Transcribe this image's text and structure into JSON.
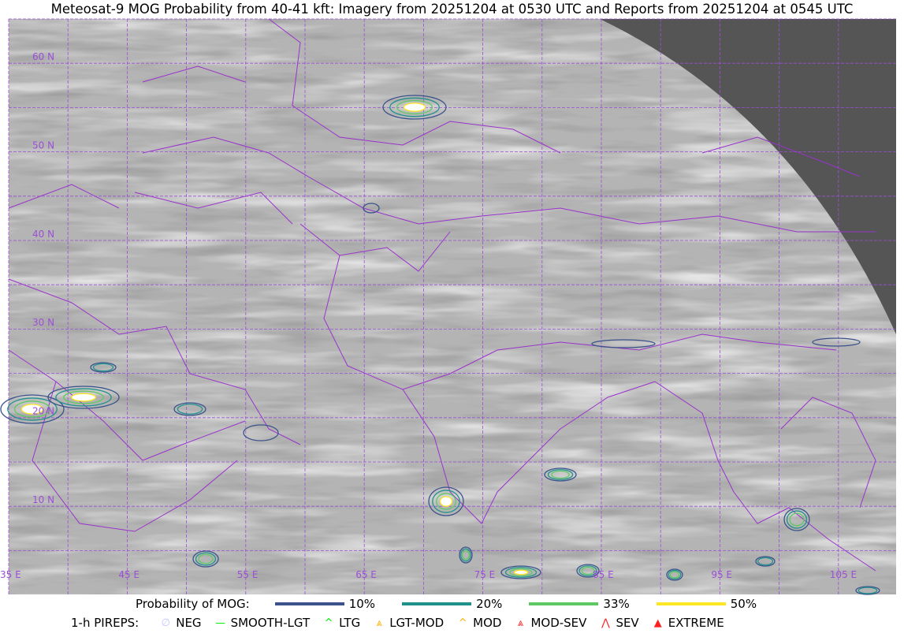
{
  "title": "Meteosat-9 MOG Probability from 40-41 kft: Imagery from 20251204 at 0530 UTC and Reports from 20251204 at 0545 UTC",
  "map": {
    "longitude_labels": [
      "35 E",
      "45 E",
      "55 E",
      "65 E",
      "75 E",
      "85 E",
      "95 E",
      "105 E"
    ],
    "latitude_labels": [
      "60 N",
      "50 N",
      "40 N",
      "30 N",
      "20 N",
      "10 N"
    ],
    "colors": {
      "grid": "#9b4fd6",
      "borders": "#9933cc",
      "space": "#555555"
    }
  },
  "legend": {
    "probability_label": "Probability of MOG:",
    "probability_levels": [
      {
        "label": "10%",
        "color": "#3b528b"
      },
      {
        "label": "20%",
        "color": "#21918c"
      },
      {
        "label": "33%",
        "color": "#5ec962"
      },
      {
        "label": "50%",
        "color": "#fde725"
      }
    ],
    "pireps_label": "1-h PIREPS:",
    "pireps": [
      {
        "label": "NEG",
        "symbol": "∅",
        "color": "#c8c8ff",
        "icon": "neg-icon"
      },
      {
        "label": "SMOOTH-LGT",
        "symbol": "—",
        "color": "#00ee00",
        "icon": "smooth-lgt-icon"
      },
      {
        "label": "LTG",
        "symbol": "^",
        "color": "#00ee00",
        "icon": "ltg-icon"
      },
      {
        "label": "LGT-MOD",
        "symbol": "⩓",
        "color": "#ffb000",
        "icon": "lgt-mod-icon"
      },
      {
        "label": "MOD",
        "symbol": "^",
        "color": "#ffb000",
        "icon": "mod-icon"
      },
      {
        "label": "MOD-SEV",
        "symbol": "⩓",
        "color": "#ff2020",
        "icon": "mod-sev-icon"
      },
      {
        "label": "SEV",
        "symbol": "⋀",
        "color": "#ff2020",
        "icon": "sev-icon"
      },
      {
        "label": "EXTREME",
        "symbol": "▲",
        "color": "#ff2020",
        "icon": "extreme-icon"
      }
    ]
  }
}
